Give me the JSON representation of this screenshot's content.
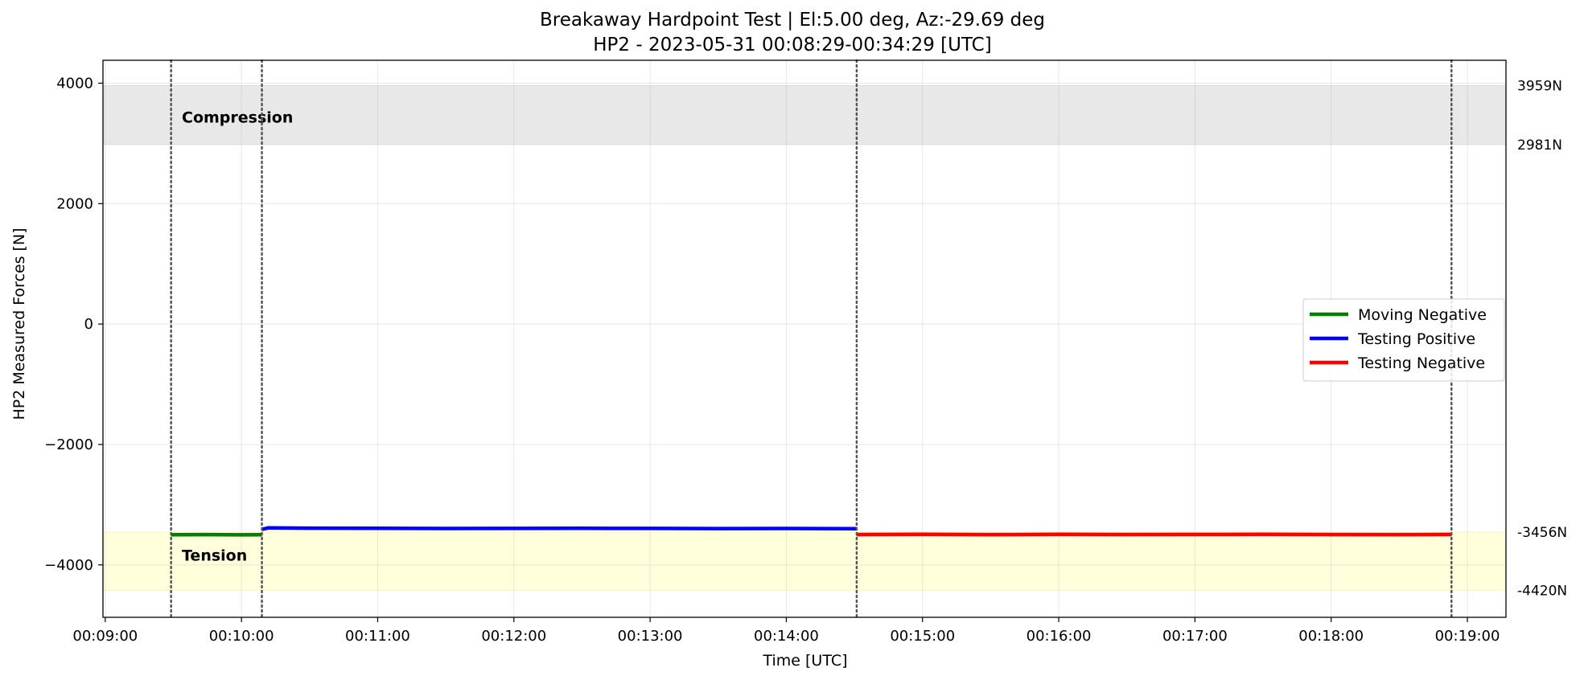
{
  "chart_data": {
    "type": "line",
    "title": "Breakaway Hardpoint Test | El:5.00 deg, Az:-29.69 deg",
    "subtitle": "HP2 - 2023-05-31 00:08:29-00:34:29 [UTC]",
    "xlabel": "Time [UTC]",
    "ylabel": "HP2 Measured Forces [N]",
    "x_ticks": [
      "00:09:00",
      "00:10:00",
      "00:11:00",
      "00:12:00",
      "00:13:00",
      "00:14:00",
      "00:15:00",
      "00:16:00",
      "00:17:00",
      "00:18:00",
      "00:19:00"
    ],
    "y_ticks": [
      "4000",
      "2000",
      "0",
      "−2000",
      "−4000"
    ],
    "y_tick_values": [
      4000,
      2000,
      0,
      -2000,
      -4000
    ],
    "xlim": [
      "00:08:59",
      "00:19:17"
    ],
    "ylim": [
      -4870,
      4380
    ],
    "grid": true,
    "legend_placement": "center-right",
    "bands": [
      {
        "label": "Compression",
        "y_min": 2981,
        "y_max": 3959,
        "color": "#e8e8e8",
        "right_labels": [
          "3959N",
          "2981N"
        ]
      },
      {
        "label": "Tension",
        "y_min": -4420,
        "y_max": -3456,
        "color": "#ffffdc",
        "right_labels": [
          "-3456N",
          "-4420N"
        ]
      }
    ],
    "vlines": [
      "00:09:29",
      "00:10:09",
      "00:14:31",
      "00:18:53"
    ],
    "series": [
      {
        "name": "Moving Negative",
        "color": "#008000",
        "x": [
          "00:09:29",
          "00:09:45",
          "00:10:00",
          "00:10:09"
        ],
        "y": [
          -3498,
          -3496,
          -3500,
          -3498
        ]
      },
      {
        "name": "Testing Positive",
        "color": "#0000ff",
        "x": [
          "00:10:09",
          "00:10:12",
          "00:10:30",
          "00:11:00",
          "00:11:30",
          "00:12:00",
          "00:12:30",
          "00:13:00",
          "00:13:30",
          "00:14:00",
          "00:14:30",
          "00:14:31"
        ],
        "y": [
          -3410,
          -3385,
          -3390,
          -3392,
          -3395,
          -3394,
          -3393,
          -3394,
          -3396,
          -3395,
          -3398,
          -3400
        ]
      },
      {
        "name": "Testing Negative",
        "color": "#ff0000",
        "x": [
          "00:14:31",
          "00:15:00",
          "00:15:30",
          "00:16:00",
          "00:16:30",
          "00:17:00",
          "00:17:30",
          "00:18:00",
          "00:18:30",
          "00:18:53"
        ],
        "y": [
          -3495,
          -3492,
          -3496,
          -3493,
          -3495,
          -3494,
          -3492,
          -3495,
          -3496,
          -3494
        ]
      }
    ]
  }
}
